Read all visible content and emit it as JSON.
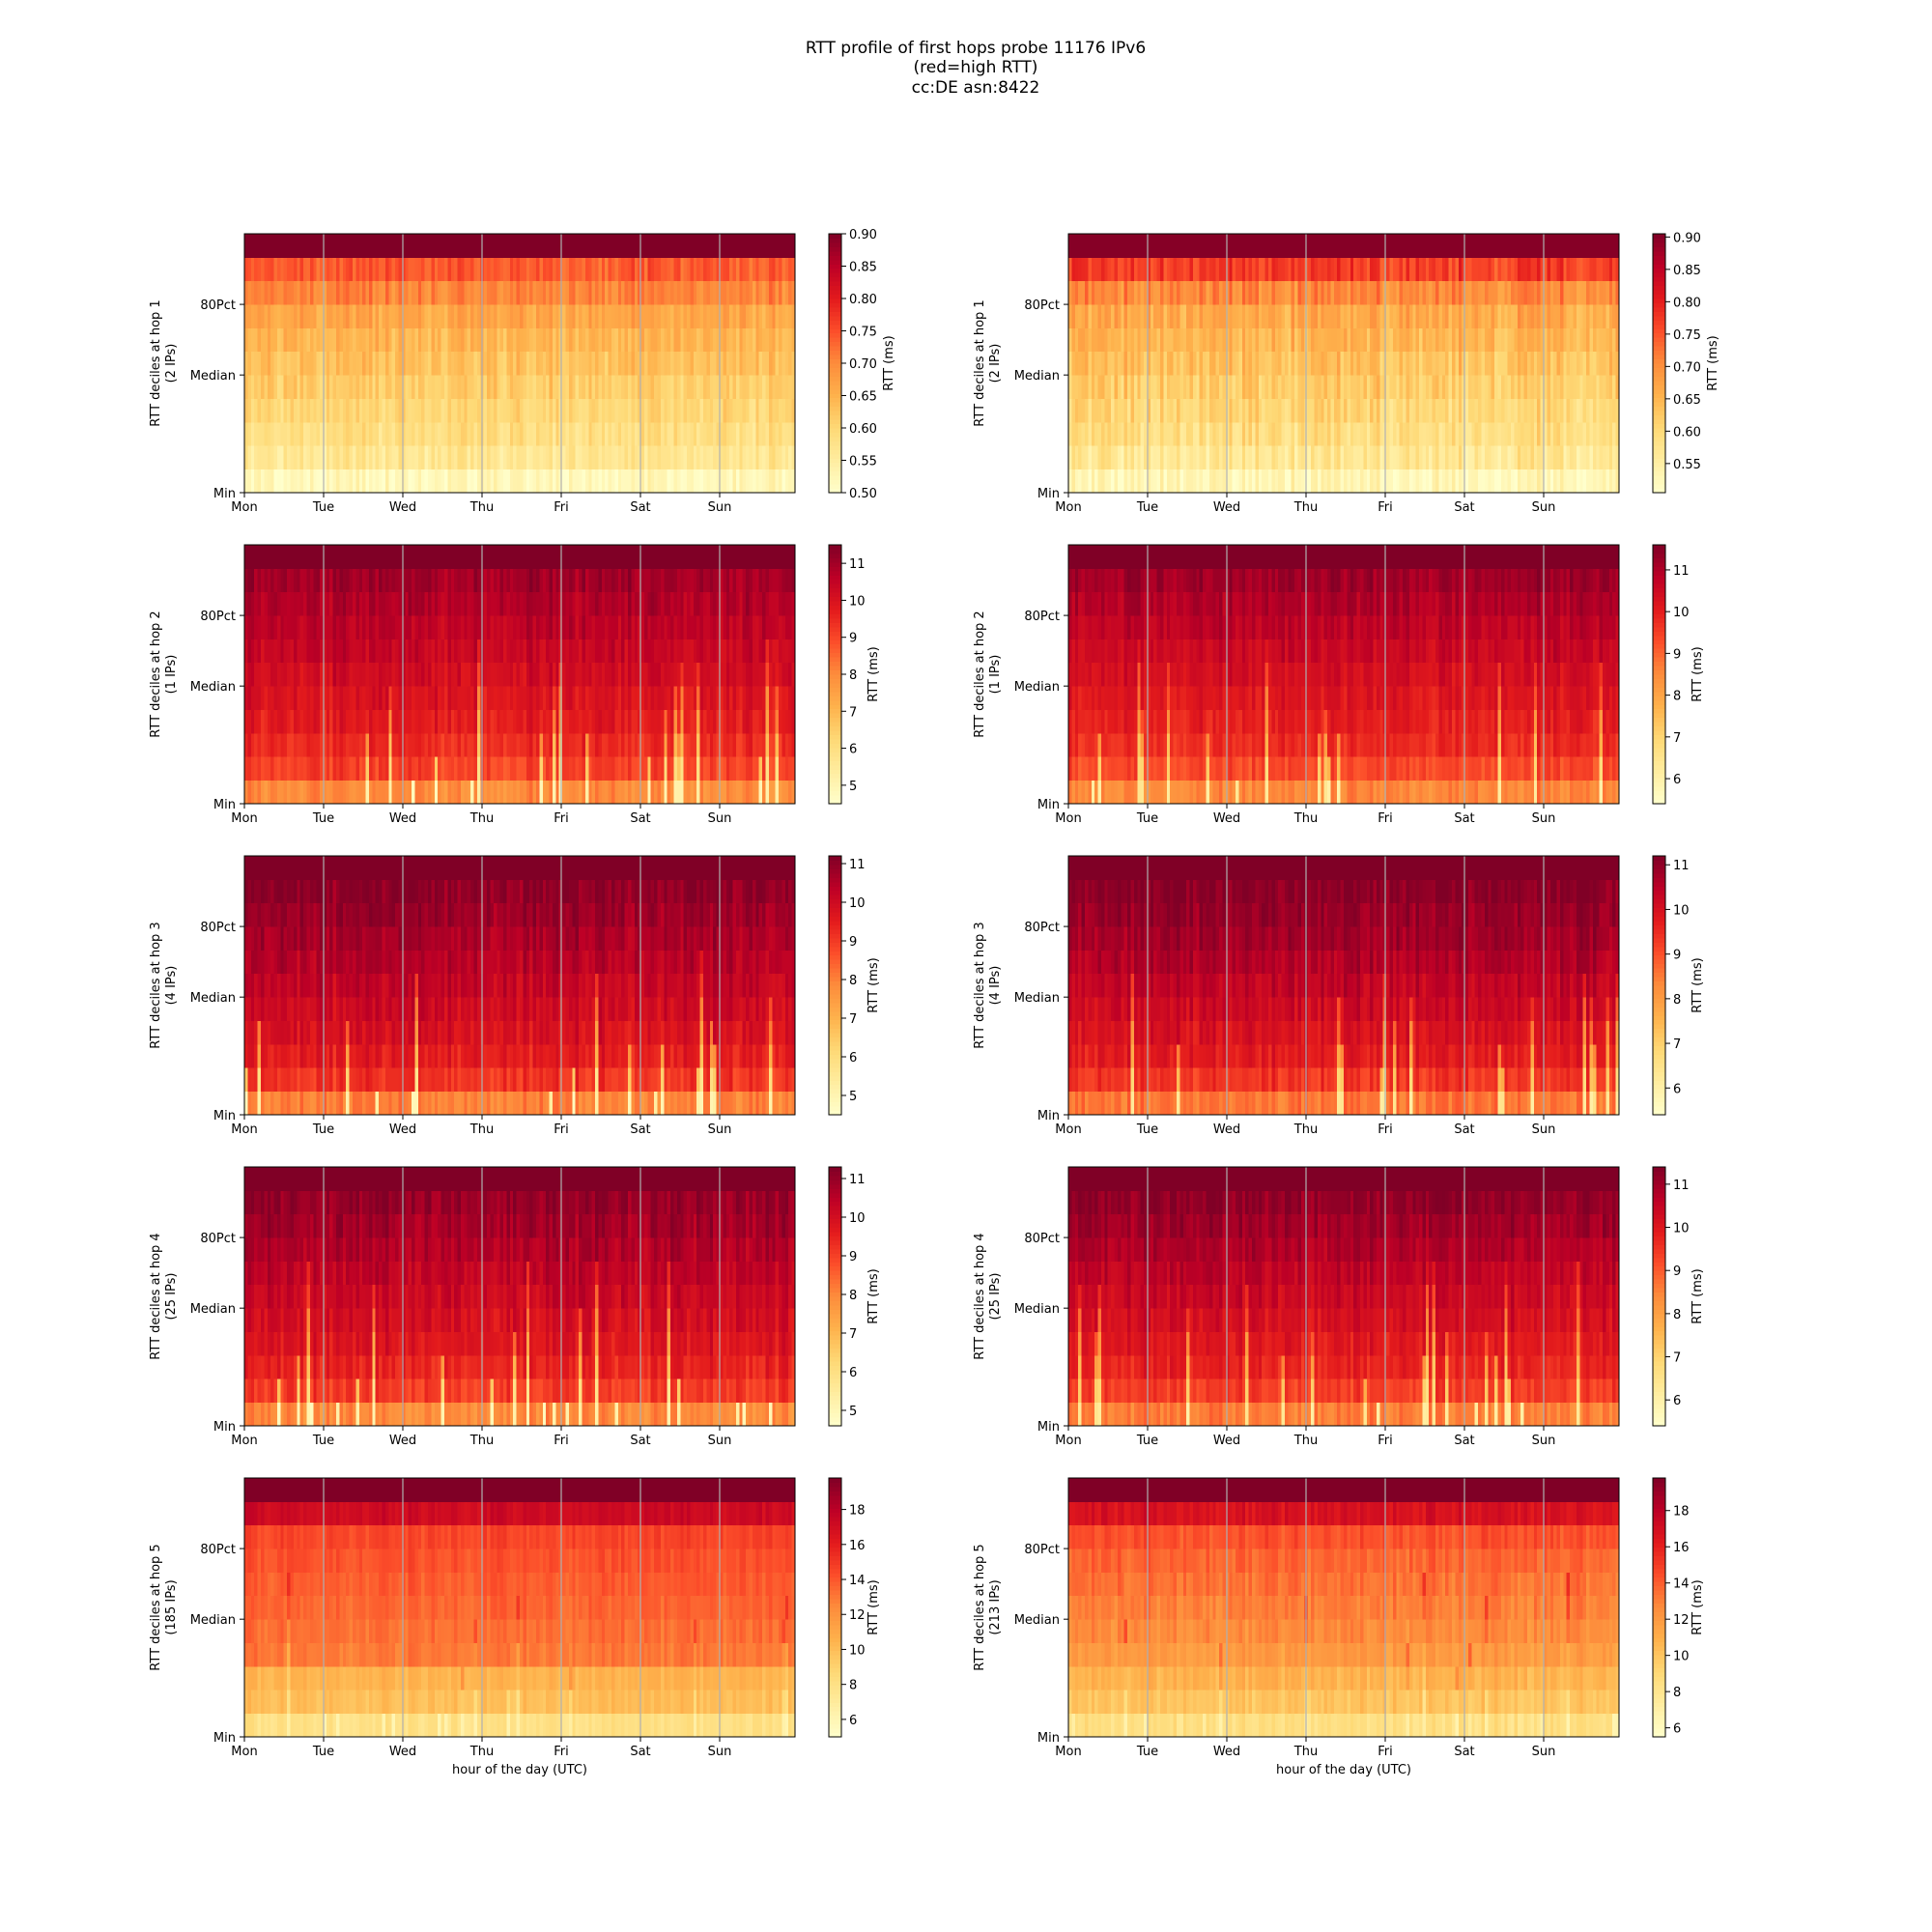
{
  "figure": {
    "title_lines": [
      "RTT profile of first hops probe 11176 IPv6",
      "(red=high RTT)",
      "cc:DE asn:8422"
    ]
  },
  "colormap": {
    "name": "YlOrRd",
    "stops": [
      "#ffffcc",
      "#ffeda0",
      "#fed976",
      "#feb24c",
      "#fd8d3c",
      "#fc4e2a",
      "#e31a1c",
      "#bd0026",
      "#800026"
    ]
  },
  "chart_data": [
    {
      "type": "heatmap",
      "column": "left",
      "row": 0,
      "ylabel": [
        "RTT deciles at hop 1",
        "(2 IPs)"
      ],
      "y_tick_labels": [
        "80Pct",
        "Median",
        "Min"
      ],
      "x_tick_labels": [
        "Mon",
        "Tue",
        "Wed",
        "Thu",
        "Fri",
        "Sat",
        "Sun"
      ],
      "xlabel": "",
      "colorbar_label": "RTT (ms)",
      "colorbar_ticks": [
        "0.90",
        "0.85",
        "0.80",
        "0.75",
        "0.70",
        "0.65",
        "0.60",
        "0.55",
        "0.50"
      ],
      "clim": [
        0.5,
        0.9
      ],
      "decile_base_rtt": [
        0.52,
        0.565,
        0.585,
        0.6,
        0.615,
        0.63,
        0.645,
        0.665,
        0.705,
        0.74,
        0.9
      ],
      "variability": 0.04,
      "spike_level": 0.0
    },
    {
      "type": "heatmap",
      "column": "right",
      "row": 0,
      "ylabel": [
        "RTT deciles at hop 1",
        "(2 IPs)"
      ],
      "y_tick_labels": [
        "80Pct",
        "Median",
        "Min"
      ],
      "x_tick_labels": [
        "Mon",
        "Tue",
        "Wed",
        "Thu",
        "Fri",
        "Sat",
        "Sun"
      ],
      "xlabel": "",
      "colorbar_label": "RTT (ms)",
      "colorbar_ticks": [
        "0.90",
        "0.85",
        "0.80",
        "0.75",
        "0.70",
        "0.65",
        "0.60",
        "0.55"
      ],
      "clim": [
        0.505,
        0.905
      ],
      "decile_base_rtt": [
        0.53,
        0.57,
        0.59,
        0.605,
        0.62,
        0.635,
        0.65,
        0.665,
        0.705,
        0.77,
        0.9
      ],
      "variability": 0.05,
      "spike_level": 0.0
    },
    {
      "type": "heatmap",
      "column": "left",
      "row": 1,
      "ylabel": [
        "RTT deciles at hop 2",
        "(1 IPs)"
      ],
      "y_tick_labels": [
        "80Pct",
        "Median",
        "Min"
      ],
      "x_tick_labels": [
        "Mon",
        "Tue",
        "Wed",
        "Thu",
        "Fri",
        "Sat",
        "Sun"
      ],
      "xlabel": "",
      "colorbar_label": "RTT (ms)",
      "colorbar_ticks": [
        "11",
        "10",
        "9",
        "8",
        "7",
        "6",
        "5"
      ],
      "clim": [
        4.5,
        11.5
      ],
      "decile_base_rtt": [
        8.0,
        9.1,
        9.5,
        9.8,
        10.0,
        10.2,
        10.4,
        10.6,
        10.8,
        11.0,
        11.5
      ],
      "variability": 0.6,
      "spike_level": 4.8
    },
    {
      "type": "heatmap",
      "column": "right",
      "row": 1,
      "ylabel": [
        "RTT deciles at hop 2",
        "(1 IPs)"
      ],
      "y_tick_labels": [
        "80Pct",
        "Median",
        "Min"
      ],
      "x_tick_labels": [
        "Mon",
        "Tue",
        "Wed",
        "Thu",
        "Fri",
        "Sat",
        "Sun"
      ],
      "xlabel": "",
      "colorbar_label": "RTT (ms)",
      "colorbar_ticks": [
        "11",
        "10",
        "9",
        "8",
        "7",
        "6"
      ],
      "clim": [
        5.4,
        11.6
      ],
      "decile_base_rtt": [
        8.6,
        9.4,
        9.8,
        10.0,
        10.2,
        10.4,
        10.6,
        10.8,
        11.0,
        11.2,
        11.6
      ],
      "variability": 0.5,
      "spike_level": 6.0
    },
    {
      "type": "heatmap",
      "column": "left",
      "row": 2,
      "ylabel": [
        "RTT deciles at hop 3",
        "(4 IPs)"
      ],
      "y_tick_labels": [
        "80Pct",
        "Median",
        "Min"
      ],
      "x_tick_labels": [
        "Mon",
        "Tue",
        "Wed",
        "Thu",
        "Fri",
        "Sat",
        "Sun"
      ],
      "xlabel": "",
      "colorbar_label": "RTT (ms)",
      "colorbar_ticks": [
        "11",
        "10",
        "9",
        "8",
        "7",
        "6",
        "5"
      ],
      "clim": [
        4.5,
        11.2
      ],
      "decile_base_rtt": [
        8.0,
        9.1,
        9.5,
        9.8,
        10.0,
        10.2,
        10.4,
        10.6,
        10.8,
        11.0,
        11.2
      ],
      "variability": 0.6,
      "spike_level": 4.8
    },
    {
      "type": "heatmap",
      "column": "right",
      "row": 2,
      "ylabel": [
        "RTT deciles at hop 3",
        "(4 IPs)"
      ],
      "y_tick_labels": [
        "80Pct",
        "Median",
        "Min"
      ],
      "x_tick_labels": [
        "Mon",
        "Tue",
        "Wed",
        "Thu",
        "Fri",
        "Sat",
        "Sun"
      ],
      "xlabel": "",
      "colorbar_label": "RTT (ms)",
      "colorbar_ticks": [
        "11",
        "10",
        "9",
        "8",
        "7",
        "6"
      ],
      "clim": [
        5.4,
        11.2
      ],
      "decile_base_rtt": [
        8.6,
        9.4,
        9.8,
        10.0,
        10.2,
        10.4,
        10.6,
        10.8,
        10.95,
        11.1,
        11.2
      ],
      "variability": 0.5,
      "spike_level": 6.0
    },
    {
      "type": "heatmap",
      "column": "left",
      "row": 3,
      "ylabel": [
        "RTT deciles at hop 4",
        "(25 IPs)"
      ],
      "y_tick_labels": [
        "80Pct",
        "Median",
        "Min"
      ],
      "x_tick_labels": [
        "Mon",
        "Tue",
        "Wed",
        "Thu",
        "Fri",
        "Sat",
        "Sun"
      ],
      "xlabel": "",
      "colorbar_label": "RTT (ms)",
      "colorbar_ticks": [
        "11",
        "10",
        "9",
        "8",
        "7",
        "6",
        "5"
      ],
      "clim": [
        4.6,
        11.3
      ],
      "decile_base_rtt": [
        8.0,
        9.1,
        9.5,
        9.8,
        10.0,
        10.2,
        10.4,
        10.6,
        10.8,
        11.0,
        11.3
      ],
      "variability": 0.6,
      "spike_level": 4.8
    },
    {
      "type": "heatmap",
      "column": "right",
      "row": 3,
      "ylabel": [
        "RTT deciles at hop 4",
        "(25 IPs)"
      ],
      "y_tick_labels": [
        "80Pct",
        "Median",
        "Min"
      ],
      "x_tick_labels": [
        "Mon",
        "Tue",
        "Wed",
        "Thu",
        "Fri",
        "Sat",
        "Sun"
      ],
      "xlabel": "",
      "colorbar_label": "RTT (ms)",
      "colorbar_ticks": [
        "11",
        "10",
        "9",
        "8",
        "7",
        "6"
      ],
      "clim": [
        5.4,
        11.4
      ],
      "decile_base_rtt": [
        8.6,
        9.4,
        9.8,
        10.0,
        10.2,
        10.4,
        10.6,
        10.8,
        11.0,
        11.2,
        11.4
      ],
      "variability": 0.5,
      "spike_level": 6.0
    },
    {
      "type": "heatmap",
      "column": "left",
      "row": 4,
      "ylabel": [
        "RTT deciles at hop 5",
        "(185 IPs)"
      ],
      "y_tick_labels": [
        "80Pct",
        "Median",
        "Min"
      ],
      "x_tick_labels": [
        "Mon",
        "Tue",
        "Wed",
        "Thu",
        "Fri",
        "Sat",
        "Sun"
      ],
      "xlabel": "hour of the day (UTC)",
      "colorbar_label": "RTT (ms)",
      "colorbar_ticks": [
        "18",
        "16",
        "14",
        "12",
        "10",
        "8",
        "6"
      ],
      "clim": [
        5.0,
        19.8
      ],
      "decile_base_rtt": [
        8.0,
        10.0,
        10.5,
        13.0,
        13.3,
        13.6,
        13.9,
        14.2,
        14.6,
        17.2,
        19.8
      ],
      "variability": 0.8,
      "spike_level": 6.0
    },
    {
      "type": "heatmap",
      "column": "right",
      "row": 4,
      "ylabel": [
        "RTT deciles at hop 5",
        "(213 IPs)"
      ],
      "y_tick_labels": [
        "80Pct",
        "Median",
        "Min"
      ],
      "x_tick_labels": [
        "Mon",
        "Tue",
        "Wed",
        "Thu",
        "Fri",
        "Sat",
        "Sun"
      ],
      "xlabel": "hour of the day (UTC)",
      "colorbar_label": "RTT (ms)",
      "colorbar_ticks": [
        "18",
        "16",
        "14",
        "12",
        "10",
        "8",
        "6"
      ],
      "clim": [
        5.5,
        19.8
      ],
      "decile_base_rtt": [
        8.5,
        10.0,
        10.8,
        12.0,
        12.6,
        13.0,
        13.4,
        13.8,
        14.4,
        16.8,
        19.8
      ],
      "variability": 1.0,
      "spike_level": 6.5
    }
  ]
}
